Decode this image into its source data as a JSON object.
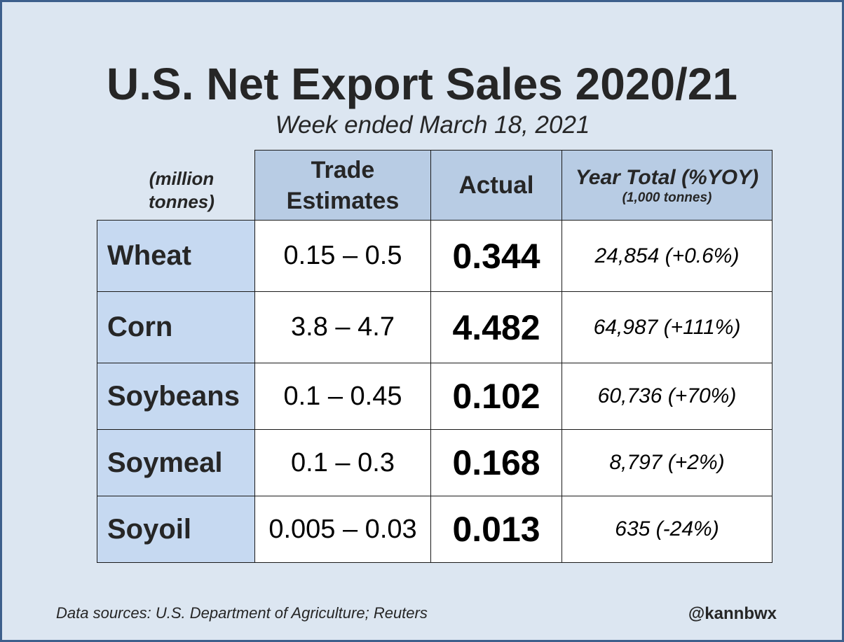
{
  "title": "U.S. Net Export Sales 2020/21",
  "subtitle": "Week ended March 18, 2021",
  "units_label": "(million tonnes)",
  "columns": {
    "estimates_line1": "Trade",
    "estimates_line2": "Estimates",
    "actual": "Actual",
    "year_total": "Year Total (%YOY)",
    "year_total_units": "(1,000 tonnes)"
  },
  "rows": [
    {
      "commodity": "Wheat",
      "estimate": "0.15 – 0.5",
      "actual": "0.344",
      "year_total": "24,854 (+0.6%)"
    },
    {
      "commodity": "Corn",
      "estimate": "3.8 – 4.7",
      "actual": "4.482",
      "year_total": "64,987 (+111%)"
    },
    {
      "commodity": "Soybeans",
      "estimate": "0.1 – 0.45",
      "actual": "0.102",
      "year_total": "60,736 (+70%)"
    },
    {
      "commodity": "Soymeal",
      "estimate": "0.1 – 0.3",
      "actual": "0.168",
      "year_total": "8,797 (+2%)"
    },
    {
      "commodity": "Soyoil",
      "estimate": "0.005 – 0.03",
      "actual": "0.013",
      "year_total": "635 (-24%)"
    }
  ],
  "footer": {
    "sources": "Data sources: U.S. Department of Agriculture; Reuters",
    "handle": "@kannbwx"
  },
  "colors": {
    "background": "#dce6f1",
    "border": "#3d5f8c",
    "header_fill": "#b8cce4",
    "row_header_fill": "#c6d9f1"
  }
}
